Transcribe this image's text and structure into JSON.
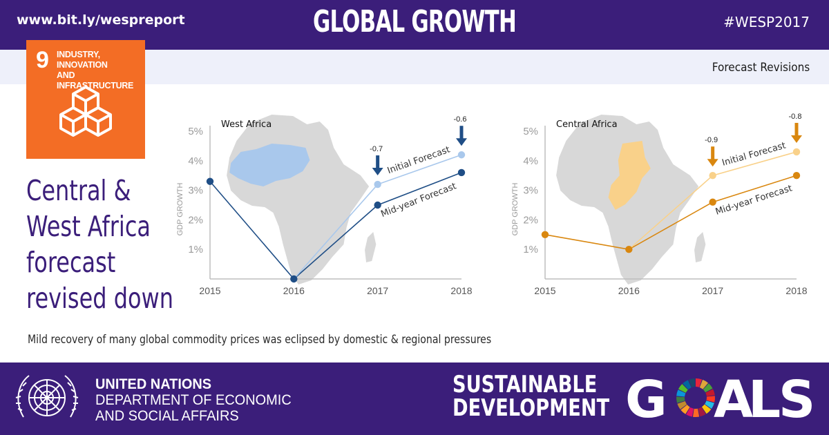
{
  "header": {
    "url": "www.bit.ly/wespreport",
    "title": "GLOBAL GROWTH",
    "hashtag": "#WESP2017",
    "subtitle": "Forecast Revisions"
  },
  "sdg_tile": {
    "number": "9",
    "label_line1": "INDUSTRY, INNOVATION",
    "label_line2": "AND INFRASTRUCTURE",
    "color": "#f36d25",
    "icon": "stacked-cubes-icon"
  },
  "headline": [
    "Central &",
    "West Africa",
    "forecast",
    "revised down"
  ],
  "caption": "Mild recovery of many global commodity prices was eclipsed by domestic & regional pressures",
  "footer": {
    "un_line1": "UNITED NATIONS",
    "un_line2": "DEPARTMENT OF ECONOMIC",
    "un_line3": "AND SOCIAL AFFAIRS",
    "sdg_line1": "SUSTAINABLE",
    "sdg_line2": "DEVELOPMENT",
    "goals_word": "GOALS",
    "goals_letters": [
      "G",
      "A",
      "L",
      "S"
    ]
  },
  "colors": {
    "brand_purple": "#3b1e7a",
    "west_dark": "#1f4e86",
    "west_light": "#a9c8ec",
    "central_dark": "#d9870f",
    "central_light": "#f9d18a",
    "map_gray": "#d8d8d8"
  },
  "chart_data": [
    {
      "type": "line",
      "title": "West Africa",
      "ylabel": "GDP GROWTH",
      "x": [
        "2015",
        "2016",
        "2017",
        "2018"
      ],
      "ylim": [
        0,
        5
      ],
      "yticks": [
        "1%",
        "2%",
        "3%",
        "4%",
        "5%"
      ],
      "grid": false,
      "series": [
        {
          "name": "Mid-year Forecast",
          "values": [
            3.3,
            0.0,
            2.5,
            3.6
          ]
        },
        {
          "name": "Initial Forecast",
          "values": [
            null,
            0.0,
            3.2,
            4.2
          ]
        }
      ],
      "revisions": [
        {
          "x": "2017",
          "label": "-0.7"
        },
        {
          "x": "2018",
          "label": "-0.6"
        }
      ]
    },
    {
      "type": "line",
      "title": "Central Africa",
      "ylabel": "GDP GROWTH",
      "x": [
        "2015",
        "2016",
        "2017",
        "2018"
      ],
      "ylim": [
        0,
        5
      ],
      "yticks": [
        "1%",
        "2%",
        "3%",
        "4%",
        "5%"
      ],
      "grid": false,
      "series": [
        {
          "name": "Mid-year Forecast",
          "values": [
            1.5,
            1.0,
            2.6,
            3.5
          ]
        },
        {
          "name": "Initial Forecast",
          "values": [
            null,
            1.0,
            3.5,
            4.3
          ]
        }
      ],
      "revisions": [
        {
          "x": "2017",
          "label": "-0.9"
        },
        {
          "x": "2018",
          "label": "-0.8"
        }
      ]
    }
  ]
}
